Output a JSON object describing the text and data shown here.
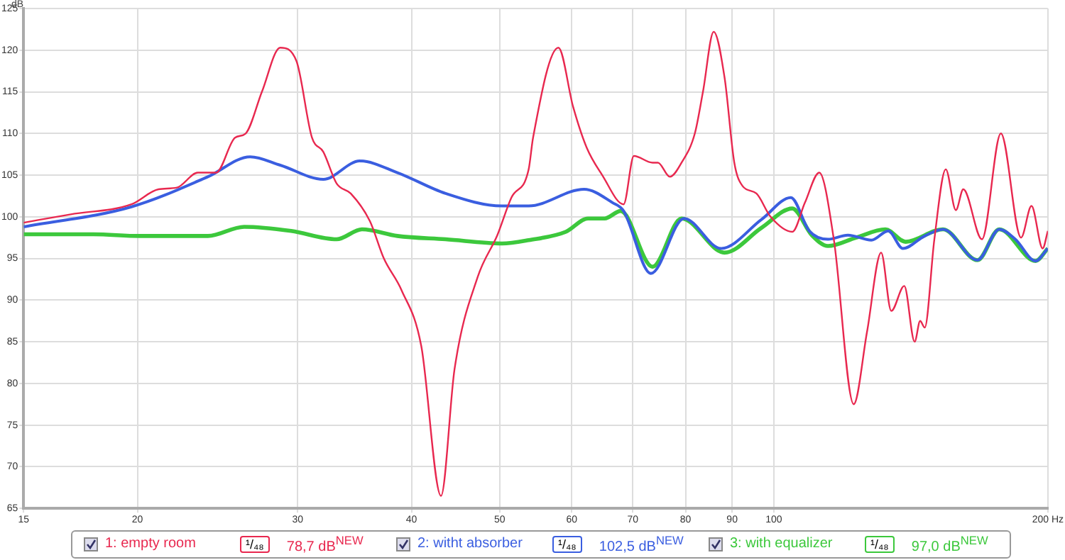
{
  "chart_data": {
    "type": "line",
    "ylabel": "dB",
    "log": "x",
    "grid": true,
    "legend": "bottom",
    "marker": "none",
    "line_style": "solid",
    "xlim": [
      15,
      200
    ],
    "xticks": [
      15,
      20,
      30,
      40,
      50,
      60,
      70,
      80,
      90,
      100,
      {
        "value": 200,
        "label": "200 Hz"
      }
    ],
    "ylim": [
      65,
      125
    ],
    "yticks": [
      65,
      70,
      75,
      80,
      85,
      90,
      95,
      100,
      105,
      110,
      115,
      120,
      125
    ],
    "annotations": [
      "¹/₄₈",
      "78,7 dB$^{NEW}$",
      "¹/₄₈",
      "102,5 dB$^{NEW}$",
      "¹/₄₈",
      "97,0 dB$^{NEW}$"
    ],
    "series": [
      {
        "name": "1: empty room",
        "color": "#e8284f",
        "x": [
          15,
          16.9,
          19.7,
          21.1,
          22.1,
          23.3,
          24.4,
          25.6,
          26.3,
          27.4,
          28.7,
          29.9,
          31.1,
          32,
          33.1,
          34.3,
          36,
          37.3,
          39,
          41,
          43.1,
          44.6,
          47.3,
          49.7,
          51.5,
          53.8,
          54.4,
          58,
          60.2,
          62.3,
          64.8,
          68.4,
          70.2,
          73.6,
          74.6,
          76.9,
          79.2,
          81.9,
          83.6,
          85.9,
          88.3,
          90.5,
          92.4,
          95.7,
          99.2,
          104.8,
          108.2,
          112.2,
          116.4,
          122.4,
          126.6,
          131.2,
          134.6,
          139.1,
          142.8,
          144.8,
          146.5,
          150.1,
          154.5,
          158.5,
          161.5,
          169.3,
          177.6,
          186.9,
          191.9,
          197.4,
          200
        ],
        "values": [
          99.3,
          100.3,
          101.5,
          103.3,
          103.5,
          105.3,
          105.3,
          109.5,
          110,
          115,
          120.3,
          118.7,
          109.5,
          107.8,
          104,
          102.8,
          99.5,
          95,
          91.2,
          84.5,
          66.5,
          81.7,
          92.8,
          97.8,
          102.3,
          105.7,
          109.5,
          120.3,
          113.2,
          108.3,
          105,
          101.5,
          107.3,
          106.5,
          106.5,
          104.8,
          106.5,
          110,
          115,
          122.2,
          116.7,
          106.5,
          103.7,
          102.8,
          100,
          98.2,
          101.7,
          105.3,
          97.3,
          77.5,
          86.2,
          95.7,
          88.7,
          91.7,
          85,
          87.5,
          86.7,
          97.3,
          105.7,
          100.8,
          103.3,
          97.3,
          110,
          97.5,
          101.3,
          96.2,
          98.3
        ]
      },
      {
        "name": "2: witht absorber",
        "color": "#3a5ee0",
        "x": [
          15,
          19.7,
          23.9,
          26.6,
          28.7,
          32,
          35.1,
          38.6,
          43.6,
          50.3,
          53.8,
          61.9,
          66.5,
          68.4,
          73.3,
          79.7,
          87.5,
          97,
          104.4,
          109.4,
          114.7,
          120.6,
          128,
          133.6,
          138.6,
          146.5,
          153.4,
          167.4,
          176.9,
          184.2,
          193.9,
          200
        ],
        "values": [
          98.8,
          101.2,
          104.8,
          107.2,
          106.2,
          104.5,
          106.7,
          105.3,
          102.8,
          101.3,
          101.3,
          103.3,
          101.7,
          100.7,
          93.2,
          99.8,
          96.2,
          99.7,
          102.3,
          98.3,
          97.3,
          97.8,
          97.2,
          98.3,
          96.2,
          97.7,
          98.5,
          94.8,
          98.5,
          97.3,
          94.7,
          96.2
        ]
      },
      {
        "name": "3: with equalizer",
        "color": "#3cc83c",
        "x": [
          15,
          17.9,
          20.1,
          23.9,
          26.2,
          29.5,
          33.1,
          35.3,
          38.6,
          43.6,
          50.3,
          53.8,
          59.1,
          62.5,
          65.2,
          67.9,
          73.6,
          79.2,
          88.3,
          97,
          104.8,
          110.1,
          114.7,
          123.1,
          132.6,
          139.6,
          153.4,
          167.4,
          176.9,
          193.9,
          200
        ],
        "values": [
          97.9,
          97.9,
          97.7,
          97.7,
          98.8,
          98.3,
          97.3,
          98.5,
          97.7,
          97.3,
          96.8,
          97.2,
          98.2,
          99.8,
          99.8,
          100.7,
          94,
          99.8,
          95.7,
          98.7,
          101,
          97.8,
          96.5,
          97.5,
          98.5,
          97,
          98.5,
          94.8,
          98.5,
          94.7,
          96.2
        ]
      }
    ]
  }
}
